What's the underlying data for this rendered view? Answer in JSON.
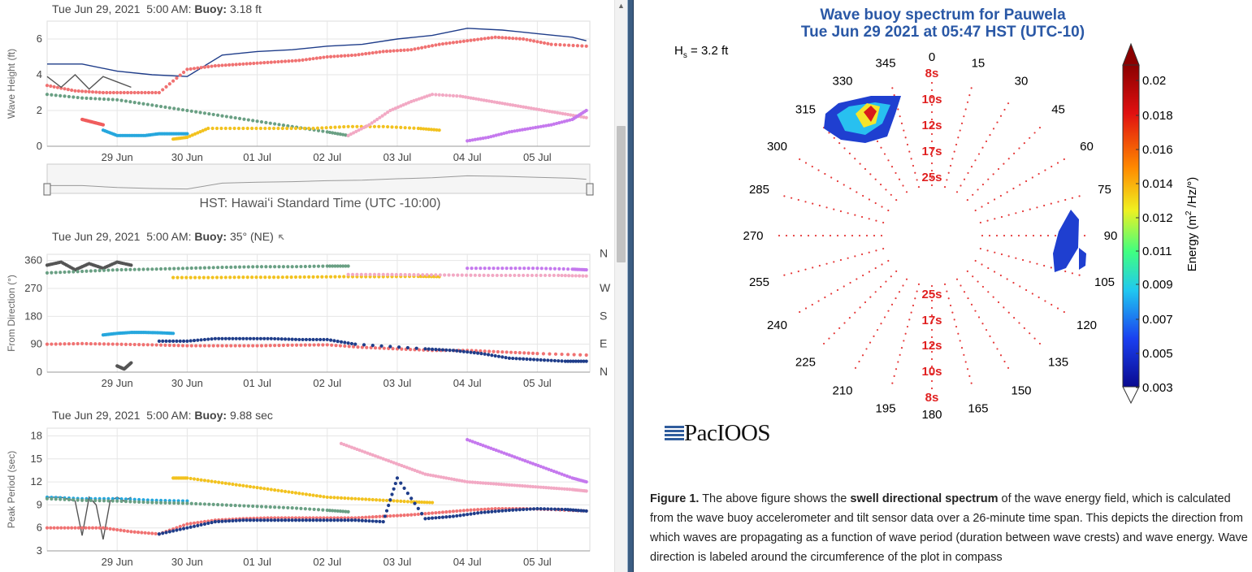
{
  "panels": {
    "height": {
      "date": "Tue Jun 29, 2021",
      "time": "5:00 AM:",
      "buoy_label": "Buoy:",
      "value": "3.18 ft",
      "ylabel": "Wave Height (ft)",
      "yticks": [
        "0",
        "2",
        "4",
        "6"
      ],
      "xticks": [
        "29 Jun",
        "30 Jun",
        "01 Jul",
        "02 Jul",
        "03 Jul",
        "04 Jul",
        "05 Jul"
      ]
    },
    "navigator": {
      "label": "HST: Hawaiʻi Standard Time (UTC -10:00)"
    },
    "direction": {
      "date": "Tue Jun 29, 2021",
      "time": "5:00 AM:",
      "buoy_label": "Buoy:",
      "value": "35° (NE)",
      "ylabel": "From Direction (°)",
      "yticks": [
        "0",
        "90",
        "180",
        "270",
        "360"
      ],
      "compass": [
        "N",
        "W",
        "S",
        "E",
        "N"
      ],
      "xticks": [
        "29 Jun",
        "30 Jun",
        "01 Jul",
        "02 Jul",
        "03 Jul",
        "04 Jul",
        "05 Jul"
      ]
    },
    "period": {
      "date": "Tue Jun 29, 2021",
      "time": "5:00 AM:",
      "buoy_label": "Buoy:",
      "value": "9.88 sec",
      "ylabel": "Peak Period (sec)",
      "yticks": [
        "3",
        "6",
        "9",
        "12",
        "15",
        "18"
      ],
      "xticks": [
        "29 Jun",
        "30 Jun",
        "01 Jul",
        "02 Jul",
        "03 Jul",
        "04 Jul",
        "05 Jul"
      ]
    }
  },
  "spectrum": {
    "title_line1": "Wave buoy spectrum for Pauwela",
    "title_line2": "Tue Jun 29 2021 at 05:47 HST (UTC-10)",
    "hs_label": "H",
    "hs_sub": "s",
    "hs_value": " = 3.2 ft",
    "direction_labels": [
      "0",
      "15",
      "30",
      "45",
      "60",
      "75",
      "90",
      "105",
      "120",
      "135",
      "150",
      "165",
      "180",
      "195",
      "210",
      "225",
      "240",
      "255",
      "270",
      "285",
      "300",
      "315",
      "330",
      "345"
    ],
    "period_rings_north": [
      "8s",
      "10s",
      "12s",
      "17s",
      "25s"
    ],
    "period_rings_south": [
      "25s",
      "17s",
      "12s",
      "10s",
      "8s"
    ],
    "colorbar_ticks": [
      "0.02",
      "0.018",
      "0.016",
      "0.014",
      "0.012",
      "0.011",
      "0.009",
      "0.007",
      "0.005",
      "0.003"
    ],
    "colorbar_label_prefix": "Energy (m",
    "colorbar_label_sup": "2",
    "colorbar_label_suffix": " /Hz/°)",
    "logo": "PacIOOS"
  },
  "caption": {
    "figure": "Figure 1.",
    "t1": " The above figure shows the ",
    "bold": "swell directional spectrum",
    "t2": " of the wave energy field, which is calculated from the wave buoy accelerometer and tilt sensor data over a 26-minute time span. This depicts the direction from which waves are propagating as a function of wave period (duration between wave crests) and wave energy. Wave direction is labeled around the circumference of the plot in compass"
  },
  "chart_data": [
    {
      "type": "scatter",
      "title": "",
      "ylabel": "Wave Height (ft)",
      "xlabel": "",
      "x_unit": "days from 28 Jun 2021 00:00 HST",
      "ylim": [
        0,
        7
      ],
      "xticks": [
        "29 Jun",
        "30 Jun",
        "01 Jul",
        "02 Jul",
        "03 Jul",
        "04 Jul",
        "05 Jul"
      ],
      "series": [
        {
          "color": "#1f3d8a",
          "style": "line",
          "x": [
            0.0,
            0.5,
            1.0,
            1.5,
            2.0,
            2.5,
            3.0,
            3.5,
            4.0,
            4.5,
            5.0,
            5.5,
            6.0,
            6.5,
            7.0,
            7.5,
            7.7
          ],
          "y": [
            4.6,
            4.6,
            4.2,
            4.0,
            3.9,
            5.1,
            5.3,
            5.4,
            5.6,
            5.7,
            6.0,
            6.2,
            6.6,
            6.5,
            6.3,
            6.1,
            5.9
          ]
        },
        {
          "color": "#f07272",
          "style": "dots",
          "x": [
            0.0,
            0.4,
            0.8,
            1.2,
            1.6,
            2.0,
            2.4,
            2.8,
            3.2,
            3.6,
            4.0,
            4.4,
            4.8,
            5.2,
            5.6,
            6.0,
            6.4,
            6.8,
            7.2,
            7.7
          ],
          "y": [
            3.4,
            3.1,
            3.0,
            3.0,
            3.0,
            4.3,
            4.5,
            4.6,
            4.7,
            4.8,
            5.0,
            5.1,
            5.3,
            5.4,
            5.7,
            5.9,
            6.1,
            6.0,
            5.7,
            5.6
          ]
        },
        {
          "color": "#555555",
          "style": "line",
          "x": [
            0.0,
            0.2,
            0.4,
            0.6,
            0.8,
            1.0,
            1.2
          ],
          "y": [
            3.9,
            3.3,
            4.0,
            3.2,
            3.9,
            3.6,
            3.3
          ]
        },
        {
          "color": "#6aa084",
          "style": "dots",
          "x": [
            0.0,
            0.5,
            1.0,
            1.5,
            2.0,
            2.5,
            3.0,
            3.5,
            4.0,
            4.3
          ],
          "y": [
            2.9,
            2.7,
            2.6,
            2.3,
            2.0,
            1.7,
            1.4,
            1.1,
            0.8,
            0.6
          ]
        },
        {
          "color": "#f05d5d",
          "style": "dots",
          "x": [
            0.5,
            0.6,
            0.7,
            0.8
          ],
          "y": [
            1.5,
            1.4,
            1.3,
            1.2
          ]
        },
        {
          "color": "#26a7dd",
          "style": "dots",
          "x": [
            0.8,
            1.0,
            1.2,
            1.4,
            1.6,
            1.8,
            2.0
          ],
          "y": [
            0.9,
            0.6,
            0.6,
            0.6,
            0.7,
            0.7,
            0.7
          ]
        },
        {
          "color": "#f2c21f",
          "style": "dots",
          "x": [
            1.8,
            2.0,
            2.3,
            2.8,
            3.3,
            3.8,
            4.3,
            4.8,
            5.3,
            5.6
          ],
          "y": [
            0.4,
            0.5,
            1.0,
            1.0,
            1.0,
            1.0,
            1.1,
            1.1,
            1.0,
            0.9
          ]
        },
        {
          "color": "#f2a9c4",
          "style": "dots",
          "x": [
            4.3,
            4.6,
            4.9,
            5.2,
            5.5,
            5.9,
            6.2,
            6.5,
            6.8,
            7.1,
            7.4,
            7.7
          ],
          "y": [
            0.6,
            1.2,
            2.0,
            2.5,
            2.9,
            2.8,
            2.6,
            2.4,
            2.2,
            2.0,
            1.8,
            1.6
          ]
        },
        {
          "color": "#c579ee",
          "style": "dots",
          "x": [
            6.0,
            6.3,
            6.6,
            6.9,
            7.2,
            7.5,
            7.7
          ],
          "y": [
            0.3,
            0.5,
            0.8,
            1.0,
            1.2,
            1.5,
            2.0
          ]
        }
      ]
    },
    {
      "type": "scatter",
      "ylabel": "From Direction (°)",
      "ylim": [
        0,
        380
      ],
      "series": [
        {
          "color": "#555555",
          "style": "dots",
          "x": [
            0.0,
            0.2,
            0.4,
            0.6,
            0.8,
            1.0,
            1.2
          ],
          "y": [
            345,
            355,
            330,
            350,
            335,
            355,
            345
          ]
        },
        {
          "color": "#6aa084",
          "style": "dots",
          "x": [
            0.0,
            0.5,
            1.0,
            1.5,
            2.0,
            2.5,
            3.0,
            3.5,
            4.0,
            4.3
          ],
          "y": [
            320,
            325,
            330,
            332,
            335,
            338,
            340,
            340,
            342,
            342
          ]
        },
        {
          "color": "#f2c21f",
          "style": "dots",
          "x": [
            1.8,
            2.3,
            2.8,
            3.3,
            3.8,
            4.3,
            4.8,
            5.3,
            5.6
          ],
          "y": [
            305,
            305,
            306,
            306,
            307,
            308,
            308,
            309,
            308
          ]
        },
        {
          "color": "#f2a9c4",
          "style": "dots",
          "x": [
            4.3,
            4.8,
            5.3,
            5.8,
            6.3,
            6.8,
            7.3,
            7.7
          ],
          "y": [
            315,
            315,
            314,
            313,
            312,
            312,
            312,
            310
          ]
        },
        {
          "color": "#c579ee",
          "style": "dots",
          "x": [
            6.0,
            6.5,
            7.0,
            7.5,
            7.7
          ],
          "y": [
            335,
            335,
            335,
            332,
            330
          ]
        },
        {
          "color": "#f07272",
          "style": "dots",
          "x": [
            0.0,
            0.5,
            1.0,
            1.5,
            2.0,
            2.5,
            3.0,
            3.5,
            4.0,
            4.5,
            5.0,
            5.5,
            6.0,
            6.5,
            7.0,
            7.7
          ],
          "y": [
            90,
            92,
            90,
            88,
            85,
            85,
            85,
            87,
            88,
            80,
            75,
            70,
            70,
            65,
            60,
            55
          ]
        },
        {
          "color": "#26a7dd",
          "style": "dots",
          "x": [
            0.8,
            1.0,
            1.2,
            1.4,
            1.6,
            1.8
          ],
          "y": [
            120,
            125,
            128,
            128,
            127,
            125
          ]
        },
        {
          "color": "#1f3d8a",
          "style": "dots",
          "x": [
            1.6,
            2.0,
            2.4,
            2.8,
            3.2,
            3.6,
            4.0,
            4.4,
            5.4,
            5.8,
            6.2,
            6.6,
            7.0,
            7.4,
            7.7
          ],
          "y": [
            100,
            100,
            108,
            108,
            108,
            105,
            105,
            90,
            75,
            70,
            60,
            45,
            40,
            35,
            35
          ]
        },
        {
          "color": "#555555",
          "style": "dots",
          "x": [
            1.0,
            1.1,
            1.2
          ],
          "y": [
            20,
            10,
            30
          ]
        }
      ]
    },
    {
      "type": "scatter",
      "ylabel": "Peak Period (sec)",
      "ylim": [
        3,
        19
      ],
      "series": [
        {
          "color": "#555555",
          "style": "line",
          "x": [
            0.0,
            0.2,
            0.4,
            0.5,
            0.6,
            0.7,
            0.8,
            0.9,
            1.0,
            1.1,
            1.2
          ],
          "y": [
            10,
            10,
            9.5,
            5,
            10,
            9,
            4.5,
            9.5,
            10,
            9.5,
            10
          ]
        },
        {
          "color": "#26a7dd",
          "style": "dots",
          "x": [
            0.0,
            0.5,
            1.0,
            1.5,
            2.0
          ],
          "y": [
            10,
            9.8,
            9.8,
            9.6,
            9.5
          ]
        },
        {
          "color": "#6aa084",
          "style": "dots",
          "x": [
            0.0,
            0.5,
            1.0,
            1.5,
            2.0,
            2.5,
            3.0,
            3.5,
            4.0,
            4.3
          ],
          "y": [
            9.8,
            9.6,
            9.5,
            9.3,
            9.2,
            9.0,
            8.8,
            8.6,
            8.3,
            8.1
          ]
        },
        {
          "color": "#f07272",
          "style": "dots",
          "x": [
            0.0,
            0.4,
            0.8,
            1.2,
            1.6,
            2.0,
            2.4,
            2.8,
            3.2,
            3.6,
            4.0,
            4.4,
            4.8,
            5.2,
            5.6,
            6.0,
            6.4,
            6.8,
            7.2,
            7.7
          ],
          "y": [
            6,
            6,
            6,
            5.5,
            5.2,
            6.5,
            7,
            7.2,
            7.3,
            7.3,
            7.3,
            7.3,
            7.5,
            7.7,
            8,
            8.3,
            8.5,
            8.5,
            8.4,
            8.2
          ]
        },
        {
          "color": "#f2c21f",
          "style": "dots",
          "x": [
            1.8,
            2.0,
            2.4,
            2.8,
            3.2,
            3.6,
            4.0,
            4.4,
            4.8,
            5.2,
            5.5
          ],
          "y": [
            12.5,
            12.5,
            12.0,
            11.5,
            11.0,
            10.5,
            10.0,
            9.8,
            9.6,
            9.4,
            9.3
          ]
        },
        {
          "color": "#f2a9c4",
          "style": "dots",
          "x": [
            4.2,
            4.5,
            4.8,
            5.1,
            5.4,
            5.7,
            6.0,
            6.3,
            6.6,
            6.9,
            7.2,
            7.5,
            7.7
          ],
          "y": [
            17,
            16,
            15,
            14,
            13,
            12.5,
            12.0,
            11.8,
            11.6,
            11.4,
            11.2,
            11.0,
            10.8
          ]
        },
        {
          "color": "#c579ee",
          "style": "dots",
          "x": [
            6.0,
            6.3,
            6.6,
            6.9,
            7.2,
            7.5,
            7.7
          ],
          "y": [
            17.5,
            16.5,
            15.5,
            14.5,
            13.5,
            12.5,
            12.0
          ]
        },
        {
          "color": "#1f3d8a",
          "style": "dots",
          "x": [
            1.6,
            2.0,
            2.4,
            2.8,
            3.2,
            3.6,
            4.0,
            4.4,
            4.8,
            5.0,
            5.4,
            5.8,
            6.2,
            6.6,
            7.0,
            7.4,
            7.7
          ],
          "y": [
            5.2,
            6,
            6.8,
            7,
            7,
            7,
            7,
            7,
            6.8,
            12.5,
            7.2,
            7.5,
            8,
            8.3,
            8.5,
            8.4,
            8.2
          ]
        }
      ]
    }
  ]
}
